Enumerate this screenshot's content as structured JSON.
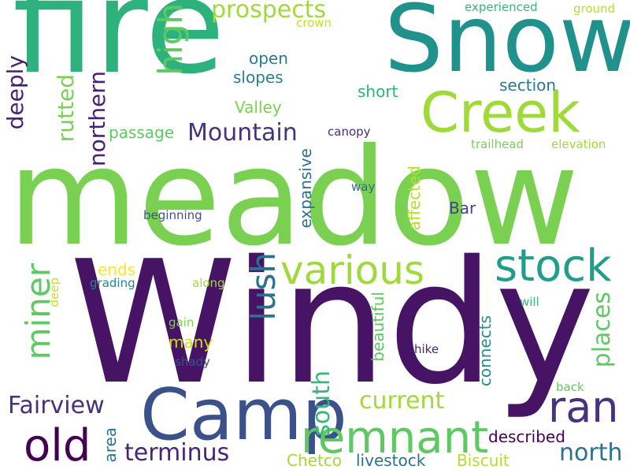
{
  "words": [
    {
      "text": "meadow",
      "color": "#7ad151",
      "rotate": false
    },
    {
      "text": "Windy",
      "color": "#471365",
      "rotate": false
    },
    {
      "text": "fire",
      "color": "#2db27d",
      "rotate": false
    },
    {
      "text": "Snow",
      "color": "#21918c",
      "rotate": false
    },
    {
      "text": "Camp",
      "color": "#3b518b",
      "rotate": false
    },
    {
      "text": "Creek",
      "color": "#a0da39",
      "rotate": false
    },
    {
      "text": "remnant",
      "color": "#5ec962",
      "rotate": false
    },
    {
      "text": "various",
      "color": "#a0da39",
      "rotate": false
    },
    {
      "text": "stock",
      "color": "#1f9e89",
      "rotate": false
    },
    {
      "text": "ran",
      "color": "#46327e",
      "rotate": false
    },
    {
      "text": "old",
      "color": "#440154",
      "rotate": false
    },
    {
      "text": "lush",
      "color": "#2c728e",
      "rotate": true
    },
    {
      "text": "miner",
      "color": "#5ec962",
      "rotate": true
    },
    {
      "text": "high",
      "color": "#5ec962",
      "rotate": true
    },
    {
      "text": "Mountain",
      "color": "#46327e",
      "rotate": false
    },
    {
      "text": "prospects",
      "color": "#a0da39",
      "rotate": false
    },
    {
      "text": "terminus",
      "color": "#482576",
      "rotate": false
    },
    {
      "text": "Fairview",
      "color": "#46327e",
      "rotate": false
    },
    {
      "text": "north",
      "color": "#2c728e",
      "rotate": false
    },
    {
      "text": "current",
      "color": "#a0da39",
      "rotate": false
    },
    {
      "text": "south",
      "color": "#35b779",
      "rotate": true
    },
    {
      "text": "places",
      "color": "#5ec962",
      "rotate": true
    },
    {
      "text": "northern",
      "color": "#482173",
      "rotate": true
    },
    {
      "text": "deeply",
      "color": "#482173",
      "rotate": true
    },
    {
      "text": "rutted",
      "color": "#7ad151",
      "rotate": true
    },
    {
      "text": "Valley",
      "color": "#7ad151",
      "rotate": false
    },
    {
      "text": "slopes",
      "color": "#287d8e",
      "rotate": false
    },
    {
      "text": "open",
      "color": "#2a788e",
      "rotate": false
    },
    {
      "text": "short",
      "color": "#2db27d",
      "rotate": false
    },
    {
      "text": "section",
      "color": "#2a788e",
      "rotate": false
    },
    {
      "text": "passage",
      "color": "#5ec962",
      "rotate": false
    },
    {
      "text": "described",
      "color": "#440154",
      "rotate": false
    },
    {
      "text": "livestock",
      "color": "#2c728e",
      "rotate": false
    },
    {
      "text": "Biscuit",
      "color": "#b5de2b",
      "rotate": false
    },
    {
      "text": "Chetco",
      "color": "#a0da39",
      "rotate": false
    },
    {
      "text": "many",
      "color": "#c8e020",
      "rotate": false
    },
    {
      "text": "ends",
      "color": "#fde725",
      "rotate": false
    },
    {
      "text": "Bar",
      "color": "#414487",
      "rotate": false
    },
    {
      "text": "connects",
      "color": "#21918c",
      "rotate": true
    },
    {
      "text": "beautiful",
      "color": "#5ec962",
      "rotate": true
    },
    {
      "text": "expansive",
      "color": "#2c728e",
      "rotate": true
    },
    {
      "text": "affected",
      "color": "#b5de2b",
      "rotate": true
    },
    {
      "text": "area",
      "color": "#2c728e",
      "rotate": true
    },
    {
      "text": "experienced",
      "color": "#35b779",
      "rotate": false
    },
    {
      "text": "ground",
      "color": "#b5de2b",
      "rotate": false
    },
    {
      "text": "crown",
      "color": "#c8e020",
      "rotate": false
    },
    {
      "text": "canopy",
      "color": "#472c7a",
      "rotate": false
    },
    {
      "text": "trailhead",
      "color": "#7ad151",
      "rotate": false
    },
    {
      "text": "elevation",
      "color": "#a0da39",
      "rotate": false
    },
    {
      "text": "way",
      "color": "#31688e",
      "rotate": false
    },
    {
      "text": "beginning",
      "color": "#3b528b",
      "rotate": false
    },
    {
      "text": "grading",
      "color": "#25858e",
      "rotate": false
    },
    {
      "text": "along",
      "color": "#a0da39",
      "rotate": false
    },
    {
      "text": "deep",
      "color": "#c8e020",
      "rotate": true
    },
    {
      "text": "gain",
      "color": "#7ad151",
      "rotate": false
    },
    {
      "text": "shady",
      "color": "#3b528b",
      "rotate": false
    },
    {
      "text": "will",
      "color": "#35b779",
      "rotate": false
    },
    {
      "text": "hike",
      "color": "#482878",
      "rotate": false
    },
    {
      "text": "back",
      "color": "#5ec962",
      "rotate": false
    }
  ]
}
